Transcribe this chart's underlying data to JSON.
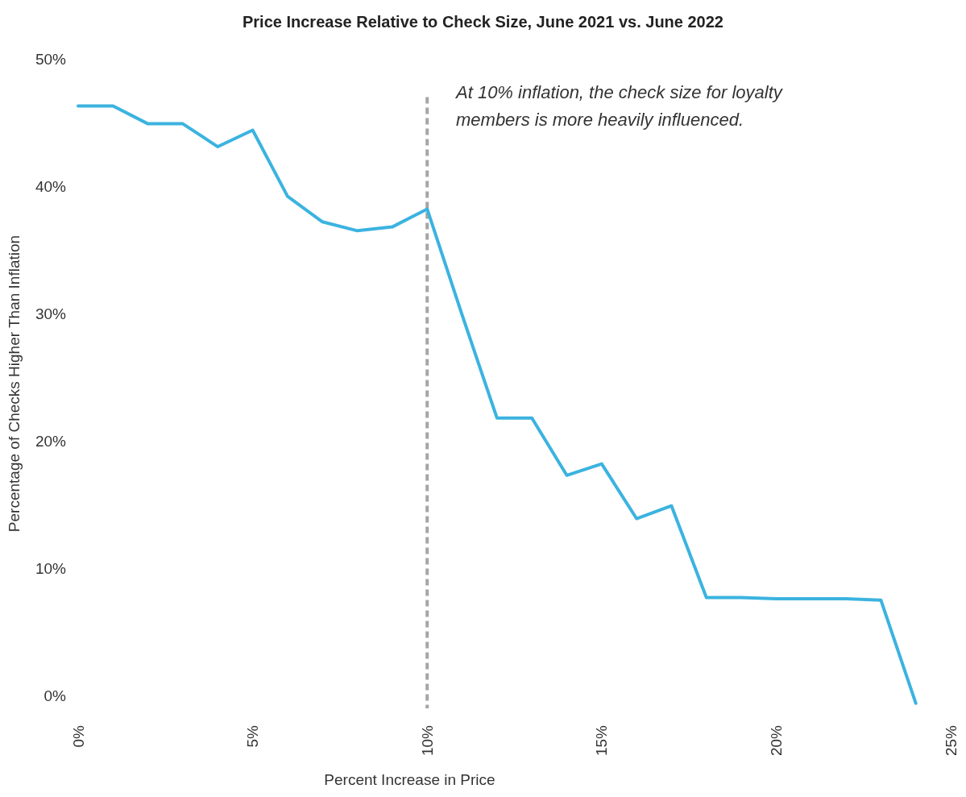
{
  "chart_data": {
    "type": "line",
    "title": "Price Increase Relative to Check Size, June 2021 vs. June 2022",
    "xlabel": "Percent Increase in Price",
    "ylabel": "Percentage of Checks Higher Than Inflation",
    "x": [
      0,
      1,
      2,
      3,
      4,
      5,
      6,
      7,
      8,
      9,
      10,
      11,
      12,
      13,
      14,
      15,
      16,
      17,
      18,
      19,
      20,
      21,
      22,
      23,
      24
    ],
    "series": [
      {
        "color": "#3bb3e0",
        "values": [
          46.3,
          46.3,
          44.9,
          44.9,
          43.1,
          44.4,
          39.2,
          37.2,
          36.5,
          36.8,
          38.2,
          29.9,
          21.8,
          21.8,
          17.3,
          18.2,
          13.9,
          14.9,
          7.7,
          7.7,
          7.6,
          7.6,
          7.6,
          7.5,
          -0.6
        ]
      }
    ],
    "xlim": [
      0,
      25
    ],
    "xticks": [
      {
        "value": 0,
        "label": "0%"
      },
      {
        "value": 5,
        "label": "5%"
      },
      {
        "value": 10,
        "label": "10%"
      },
      {
        "value": 15,
        "label": "15%"
      },
      {
        "value": 20,
        "label": "20%"
      },
      {
        "value": 25,
        "label": "25%"
      }
    ],
    "ylim": [
      -1,
      50
    ],
    "yticks": [
      {
        "value": 0,
        "label": "0%"
      },
      {
        "value": 10,
        "label": "10%"
      },
      {
        "value": 20,
        "label": "20%"
      },
      {
        "value": 30,
        "label": "30%"
      },
      {
        "value": 40,
        "label": "40%"
      },
      {
        "value": 50,
        "label": "50%"
      }
    ],
    "ref_lines": [
      {
        "axis": "x",
        "value": 10,
        "color": "#a6a6a6",
        "line_style": "dashed"
      }
    ],
    "annotations": [
      "At 10% inflation, the check size for loyalty members is more heavily influenced."
    ],
    "grid": false,
    "marker": "none",
    "line_style": "solid"
  }
}
